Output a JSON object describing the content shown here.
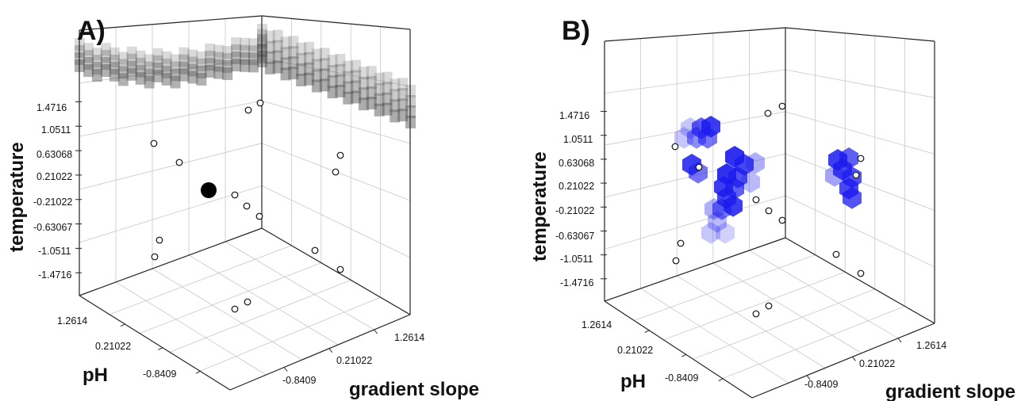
{
  "chart_data": [
    {
      "type": "scatter",
      "panel_label": "A)",
      "axes": {
        "z_label": "temperature",
        "x_label": "pH",
        "y_label": "gradient slope",
        "z_ticks": [
          "1.4716",
          "1.0511",
          "0.63068",
          "0.21022",
          "-0.21022",
          "-0.63067",
          "-1.0511",
          "-1.4716"
        ],
        "x_ticks": [
          "1.2614",
          "0.21022",
          "-0.8409"
        ],
        "y_ticks": [
          "-0.8409",
          "0.21022",
          "1.2614"
        ]
      },
      "grid": true,
      "surface_color": "#555555"
    },
    {
      "type": "scatter",
      "panel_label": "B)",
      "axes": {
        "z_label": "temperature",
        "x_label": "pH",
        "y_label": "gradient slope",
        "z_ticks": [
          "1.4716",
          "1.0511",
          "0.63068",
          "0.21022",
          "-0.21022",
          "-0.63067",
          "-1.0511",
          "-1.4716"
        ],
        "x_ticks": [
          "1.2614",
          "0.21022",
          "-0.8409"
        ],
        "y_ticks": [
          "-0.8409",
          "0.21022",
          "1.2614"
        ]
      },
      "grid": true,
      "surface_color": "#1a1aee"
    }
  ]
}
